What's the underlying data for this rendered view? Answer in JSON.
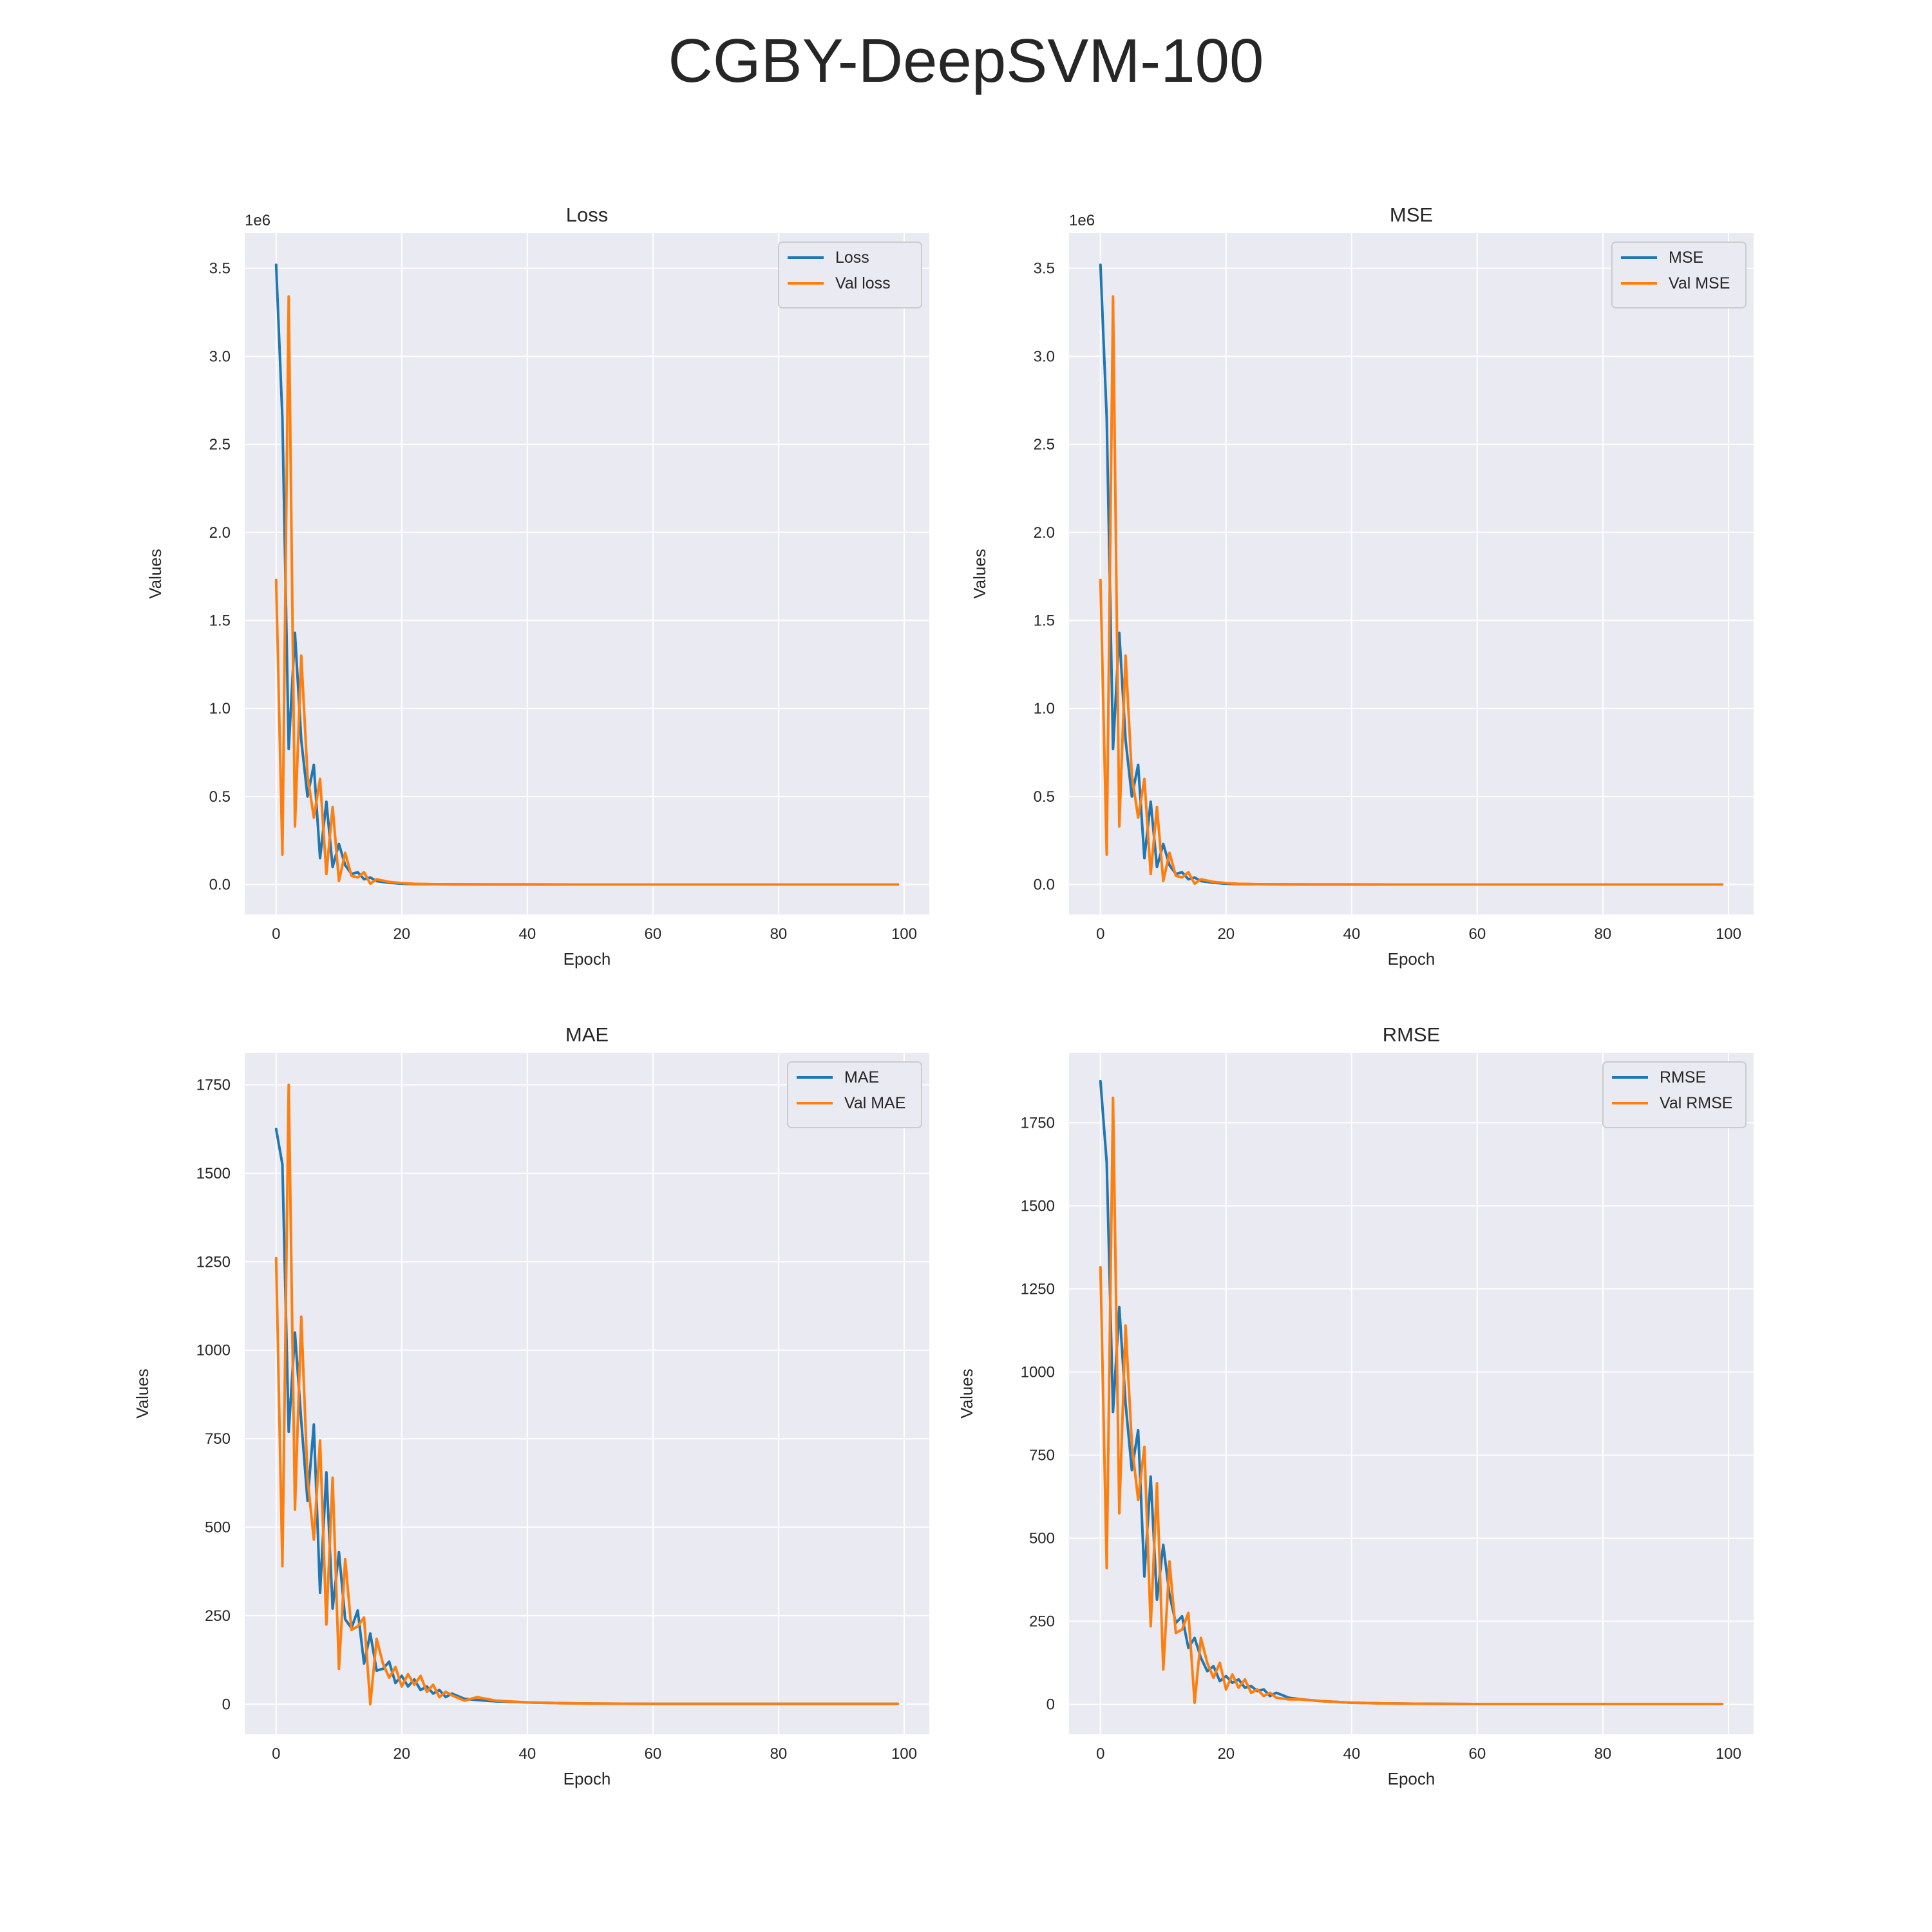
{
  "figure_title": "CGBY-DeepSVM-100",
  "chart_data": [
    {
      "type": "line",
      "title": "Loss",
      "xlabel": "Epoch",
      "ylabel": "Values",
      "offset_label": "1e6",
      "xlim": [
        -5,
        104
      ],
      "ylim": [
        -170000,
        3700000
      ],
      "xticks": [
        0,
        20,
        40,
        60,
        80,
        100
      ],
      "yticks": [
        0,
        500000,
        1000000,
        1500000,
        2000000,
        2500000,
        3000000,
        3500000
      ],
      "ytick_labels": [
        "0.0",
        "0.5",
        "1.0",
        "1.5",
        "2.0",
        "2.5",
        "3.0",
        "3.5"
      ],
      "legend": "top-right",
      "grid": true,
      "series": [
        {
          "name": "Loss",
          "color": "#1f77b4",
          "x": [
            0,
            1,
            2,
            3,
            4,
            5,
            6,
            7,
            8,
            9,
            10,
            11,
            12,
            13,
            14,
            15,
            16,
            18,
            20,
            22,
            25,
            30,
            35,
            40,
            50,
            60,
            70,
            80,
            90,
            99
          ],
          "values": [
            3520000,
            2650000,
            770000,
            1430000,
            820000,
            500000,
            680000,
            150000,
            470000,
            100000,
            230000,
            110000,
            60000,
            70000,
            30000,
            40000,
            20000,
            10000,
            5000,
            3000,
            2000,
            1000,
            500,
            300,
            100,
            50,
            30,
            20,
            10,
            5
          ]
        },
        {
          "name": "Val loss",
          "color": "#ff7f0e",
          "x": [
            0,
            1,
            2,
            3,
            4,
            5,
            6,
            7,
            8,
            9,
            10,
            11,
            12,
            13,
            14,
            15,
            16,
            18,
            20,
            22,
            25,
            30,
            35,
            40,
            50,
            60,
            70,
            80,
            90,
            99
          ],
          "values": [
            1730000,
            170000,
            3340000,
            330000,
            1300000,
            620000,
            380000,
            600000,
            60000,
            440000,
            20000,
            180000,
            50000,
            40000,
            70000,
            5000,
            30000,
            15000,
            8000,
            4000,
            2000,
            1000,
            500,
            300,
            100,
            50,
            30,
            20,
            10,
            5
          ]
        }
      ]
    },
    {
      "type": "line",
      "title": "MSE",
      "xlabel": "Epoch",
      "ylabel": "Values",
      "offset_label": "1e6",
      "xlim": [
        -5,
        104
      ],
      "ylim": [
        -170000,
        3700000
      ],
      "xticks": [
        0,
        20,
        40,
        60,
        80,
        100
      ],
      "yticks": [
        0,
        500000,
        1000000,
        1500000,
        2000000,
        2500000,
        3000000,
        3500000
      ],
      "ytick_labels": [
        "0.0",
        "0.5",
        "1.0",
        "1.5",
        "2.0",
        "2.5",
        "3.0",
        "3.5"
      ],
      "legend": "top-right",
      "grid": true,
      "series": [
        {
          "name": "MSE",
          "color": "#1f77b4",
          "x": [
            0,
            1,
            2,
            3,
            4,
            5,
            6,
            7,
            8,
            9,
            10,
            11,
            12,
            13,
            14,
            15,
            16,
            18,
            20,
            22,
            25,
            30,
            35,
            40,
            50,
            60,
            70,
            80,
            90,
            99
          ],
          "values": [
            3520000,
            2650000,
            770000,
            1430000,
            820000,
            500000,
            680000,
            150000,
            470000,
            100000,
            230000,
            110000,
            60000,
            70000,
            30000,
            40000,
            20000,
            10000,
            5000,
            3000,
            2000,
            1000,
            500,
            300,
            100,
            50,
            30,
            20,
            10,
            5
          ]
        },
        {
          "name": "Val MSE",
          "color": "#ff7f0e",
          "x": [
            0,
            1,
            2,
            3,
            4,
            5,
            6,
            7,
            8,
            9,
            10,
            11,
            12,
            13,
            14,
            15,
            16,
            18,
            20,
            22,
            25,
            30,
            35,
            40,
            50,
            60,
            70,
            80,
            90,
            99
          ],
          "values": [
            1730000,
            170000,
            3340000,
            330000,
            1300000,
            620000,
            380000,
            600000,
            60000,
            440000,
            20000,
            180000,
            50000,
            40000,
            70000,
            5000,
            30000,
            15000,
            8000,
            4000,
            2000,
            1000,
            500,
            300,
            100,
            50,
            30,
            20,
            10,
            5
          ]
        }
      ]
    },
    {
      "type": "line",
      "title": "MAE",
      "xlabel": "Epoch",
      "ylabel": "Values",
      "offset_label": "",
      "xlim": [
        -5,
        104
      ],
      "ylim": [
        -85,
        1840
      ],
      "xticks": [
        0,
        20,
        40,
        60,
        80,
        100
      ],
      "yticks": [
        0,
        250,
        500,
        750,
        1000,
        1250,
        1500,
        1750
      ],
      "ytick_labels": [
        "0",
        "250",
        "500",
        "750",
        "1000",
        "1250",
        "1500",
        "1750"
      ],
      "legend": "top-right",
      "grid": true,
      "series": [
        {
          "name": "MAE",
          "color": "#1f77b4",
          "x": [
            0,
            1,
            2,
            3,
            4,
            5,
            6,
            7,
            8,
            9,
            10,
            11,
            12,
            13,
            14,
            15,
            16,
            17,
            18,
            19,
            20,
            21,
            22,
            23,
            24,
            25,
            26,
            27,
            28,
            30,
            32,
            35,
            40,
            45,
            50,
            60,
            70,
            80,
            90,
            99
          ],
          "values": [
            1625,
            1525,
            770,
            1050,
            800,
            575,
            790,
            315,
            655,
            270,
            430,
            240,
            215,
            265,
            115,
            200,
            95,
            100,
            120,
            60,
            80,
            50,
            70,
            40,
            50,
            30,
            40,
            20,
            30,
            15,
            12,
            8,
            5,
            3,
            2,
            1,
            1,
            1,
            1,
            1
          ]
        },
        {
          "name": "Val MAE",
          "color": "#ff7f0e",
          "x": [
            0,
            1,
            2,
            3,
            4,
            5,
            6,
            7,
            8,
            9,
            10,
            11,
            12,
            13,
            14,
            15,
            16,
            17,
            18,
            19,
            20,
            21,
            22,
            23,
            24,
            25,
            26,
            27,
            28,
            30,
            32,
            35,
            40,
            45,
            50,
            60,
            70,
            80,
            90,
            99
          ],
          "values": [
            1260,
            390,
            1750,
            550,
            1095,
            640,
            465,
            745,
            225,
            640,
            100,
            410,
            210,
            220,
            245,
            0,
            185,
            115,
            75,
            105,
            50,
            85,
            55,
            80,
            35,
            55,
            20,
            35,
            25,
            10,
            20,
            10,
            5,
            3,
            2,
            1,
            1,
            1,
            1,
            1
          ]
        }
      ]
    },
    {
      "type": "line",
      "title": "RMSE",
      "xlabel": "Epoch",
      "ylabel": "Values",
      "offset_label": "",
      "xlim": [
        -5,
        104
      ],
      "ylim": [
        -90,
        1960
      ],
      "xticks": [
        0,
        20,
        40,
        60,
        80,
        100
      ],
      "yticks": [
        0,
        250,
        500,
        750,
        1000,
        1250,
        1500,
        1750
      ],
      "ytick_labels": [
        "0",
        "250",
        "500",
        "750",
        "1000",
        "1250",
        "1500",
        "1750"
      ],
      "legend": "top-right",
      "grid": true,
      "series": [
        {
          "name": "RMSE",
          "color": "#1f77b4",
          "x": [
            0,
            1,
            2,
            3,
            4,
            5,
            6,
            7,
            8,
            9,
            10,
            11,
            12,
            13,
            14,
            15,
            16,
            17,
            18,
            19,
            20,
            21,
            22,
            23,
            24,
            25,
            26,
            27,
            28,
            30,
            32,
            35,
            40,
            45,
            50,
            60,
            70,
            80,
            90,
            99
          ],
          "values": [
            1875,
            1630,
            880,
            1195,
            905,
            705,
            825,
            385,
            685,
            315,
            480,
            330,
            245,
            265,
            170,
            200,
            140,
            100,
            115,
            70,
            85,
            65,
            75,
            50,
            55,
            40,
            45,
            25,
            35,
            20,
            15,
            10,
            5,
            3,
            2,
            1,
            1,
            1,
            1,
            1
          ]
        },
        {
          "name": "Val RMSE",
          "color": "#ff7f0e",
          "x": [
            0,
            1,
            2,
            3,
            4,
            5,
            6,
            7,
            8,
            9,
            10,
            11,
            12,
            13,
            14,
            15,
            16,
            17,
            18,
            19,
            20,
            21,
            22,
            23,
            24,
            25,
            26,
            27,
            28,
            30,
            32,
            35,
            40,
            45,
            50,
            60,
            70,
            80,
            90,
            99
          ],
          "values": [
            1315,
            410,
            1825,
            575,
            1140,
            785,
            615,
            775,
            235,
            665,
            105,
            430,
            215,
            225,
            275,
            5,
            200,
            125,
            80,
            125,
            45,
            90,
            50,
            75,
            35,
            45,
            25,
            35,
            20,
            15,
            15,
            10,
            5,
            3,
            2,
            1,
            1,
            1,
            1,
            1
          ]
        }
      ]
    }
  ]
}
